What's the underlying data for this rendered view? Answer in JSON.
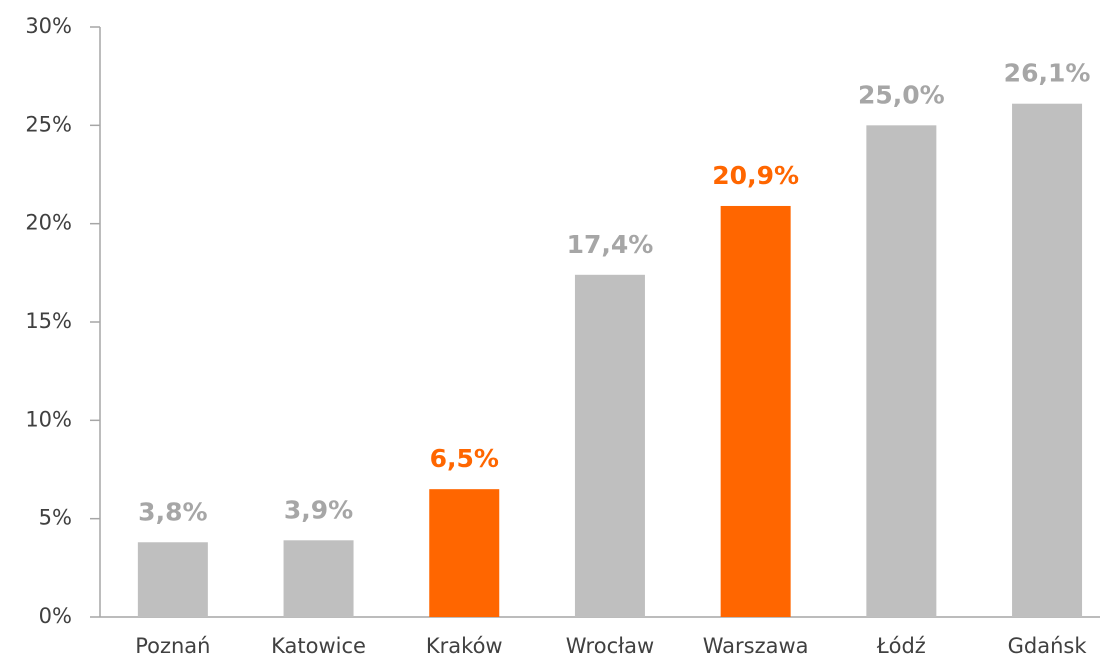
{
  "chart_data": {
    "type": "bar",
    "categories": [
      "Poznań",
      "Katowice",
      "Kraków",
      "Wrocław",
      "Warszawa",
      "Łódź",
      "Gdańsk"
    ],
    "values": [
      3.8,
      3.9,
      6.5,
      17.4,
      20.9,
      25.0,
      26.1
    ],
    "value_labels": [
      "3,8%",
      "3,9%",
      "6,5%",
      "17,4%",
      "20,9%",
      "25,0%",
      "26,1%"
    ],
    "colors": [
      "#bfbfbf",
      "#bfbfbf",
      "#ff6600",
      "#bfbfbf",
      "#ff6600",
      "#bfbfbf",
      "#bfbfbf"
    ],
    "ylim": [
      0,
      30
    ],
    "yticks": [
      {
        "value": 0,
        "label": "0%"
      },
      {
        "value": 5,
        "label": "5%"
      },
      {
        "value": 10,
        "label": "10%"
      },
      {
        "value": 15,
        "label": "15%"
      },
      {
        "value": 20,
        "label": "20%"
      },
      {
        "value": 25,
        "label": "25%"
      },
      {
        "value": 30,
        "label": "30%"
      }
    ],
    "grid": false
  }
}
